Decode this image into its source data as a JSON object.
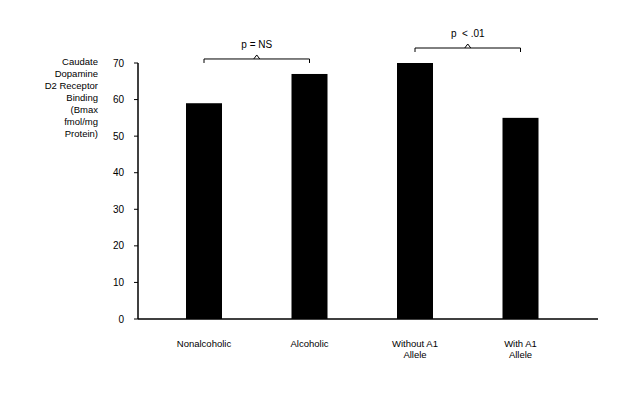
{
  "chart_data": {
    "type": "bar",
    "y_label": "Caudate\nDopamine\nD2 Receptor\nBinding\n(Bmax\nfmol/mg\nProtein)",
    "categories": [
      "Nonalcoholic",
      "Alcoholic",
      "Without A1 Allele",
      "With A1 Allele"
    ],
    "values": [
      59,
      67,
      70,
      55
    ],
    "color": "#000000",
    "ylim": [
      0,
      70
    ],
    "yticks": [
      0,
      10,
      20,
      30,
      40,
      50,
      60,
      70
    ],
    "grid": false,
    "annotations": [
      {
        "text": "p = NS",
        "between": [
          "Nonalcoholic",
          "Alcoholic"
        ]
      },
      {
        "text": "p  < .01",
        "between": [
          "Without A1 Allele",
          "With A1 Allele"
        ]
      }
    ]
  }
}
